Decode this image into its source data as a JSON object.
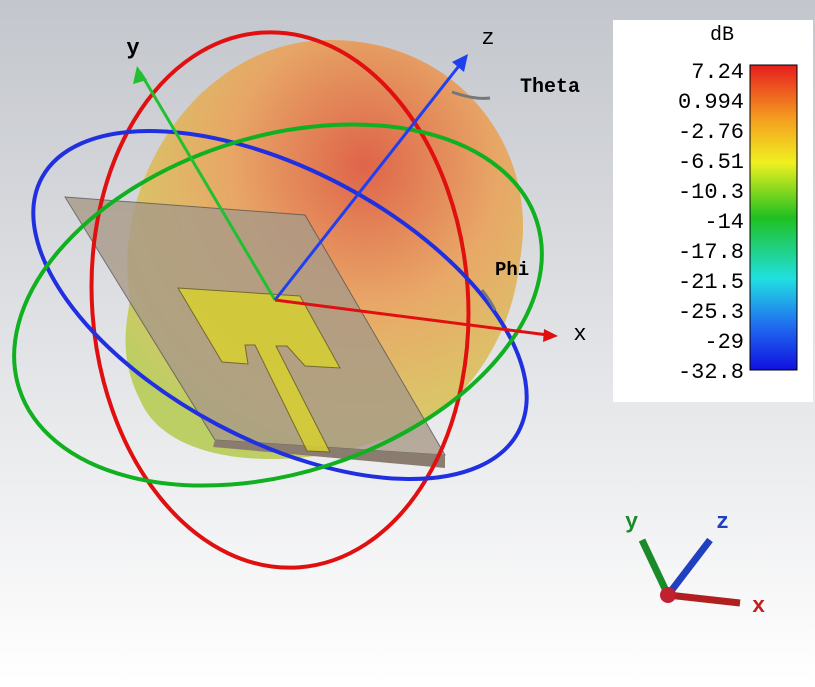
{
  "view": {
    "axes": {
      "x": "x",
      "y": "y",
      "z": "z",
      "theta": "Theta",
      "phi": "Phi"
    },
    "colorbar": {
      "unit": "dB",
      "labels": [
        7.24,
        0.994,
        -2.76,
        -6.51,
        -10.3,
        -14,
        -17.8,
        -21.5,
        -25.3,
        -29,
        -32.8
      ]
    },
    "mini_axes": {
      "x": "x",
      "y": "y",
      "z": "z"
    }
  }
}
